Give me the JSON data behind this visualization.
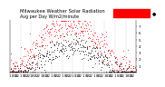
{
  "title1": "Milwaukee Weather Solar Radiation",
  "title2": "Avg per Day W/m2/minute",
  "title_fontsize": 3.8,
  "bg_color": "#ffffff",
  "plot_bg": "#ffffff",
  "grid_color": "#aaaaaa",
  "ylim": [
    0,
    8
  ],
  "ytick_values": [
    1,
    2,
    3,
    4,
    5,
    6,
    7
  ],
  "ytick_fontsize": 3.0,
  "xtick_fontsize": 2.8,
  "legend_red": "#ff0000",
  "legend_black": "#000000",
  "dot_markersize": 0.8,
  "seed": 99
}
